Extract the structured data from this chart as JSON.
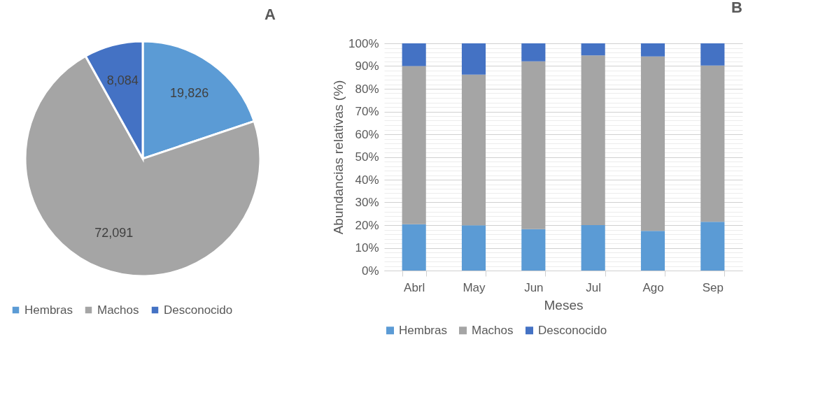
{
  "chart_data": [
    {
      "type": "pie",
      "title": "A",
      "categories": [
        "Hembras",
        "Machos",
        "Desconocido"
      ],
      "values": [
        19826,
        72091,
        8084
      ],
      "colors": [
        "#5b9bd5",
        "#a5a5a5",
        "#4472c4"
      ],
      "value_labels": [
        "19,826",
        "72,091",
        "8,084"
      ],
      "legend": "bottom"
    },
    {
      "type": "bar",
      "title": "B",
      "xlabel": "Meses",
      "ylabel": "Abundancias relativas (%)",
      "categories": [
        "Abrl",
        "May",
        "Jun",
        "Jul",
        "Ago",
        "Sep"
      ],
      "stacked": true,
      "series": [
        {
          "name": "Hembras",
          "color": "#5b9bd5",
          "values": [
            20.4,
            19.9,
            18.2,
            20.0,
            17.5,
            21.5
          ]
        },
        {
          "name": "Machos",
          "color": "#a5a5a5",
          "values": [
            69.6,
            66.3,
            73.9,
            74.7,
            76.7,
            68.7
          ]
        },
        {
          "name": "Desconocido",
          "color": "#4472c4",
          "values": [
            10.0,
            13.8,
            7.9,
            5.3,
            5.8,
            9.8
          ]
        }
      ],
      "ylim": [
        0,
        100
      ],
      "yticks": [
        {
          "value": 0,
          "label": "0%"
        },
        {
          "value": 2,
          "label": null
        },
        {
          "value": 4,
          "label": null
        },
        {
          "value": 6,
          "label": null
        },
        {
          "value": 8,
          "label": null
        },
        {
          "value": 10,
          "label": "10%"
        },
        {
          "value": 12,
          "label": null
        },
        {
          "value": 14,
          "label": null
        },
        {
          "value": 16,
          "label": null
        },
        {
          "value": 18,
          "label": null
        },
        {
          "value": 20,
          "label": "20%"
        },
        {
          "value": 22,
          "label": null
        },
        {
          "value": 24,
          "label": null
        },
        {
          "value": 26,
          "label": null
        },
        {
          "value": 28,
          "label": null
        },
        {
          "value": 30,
          "label": "30%"
        },
        {
          "value": 32,
          "label": null
        },
        {
          "value": 34,
          "label": null
        },
        {
          "value": 36,
          "label": null
        },
        {
          "value": 38,
          "label": null
        },
        {
          "value": 40,
          "label": "40%"
        },
        {
          "value": 42,
          "label": null
        },
        {
          "value": 44,
          "label": null
        },
        {
          "value": 46,
          "label": null
        },
        {
          "value": 48,
          "label": null
        },
        {
          "value": 50,
          "label": "50%"
        },
        {
          "value": 52,
          "label": null
        },
        {
          "value": 54,
          "label": null
        },
        {
          "value": 56,
          "label": null
        },
        {
          "value": 58,
          "label": null
        },
        {
          "value": 60,
          "label": "60%"
        },
        {
          "value": 62,
          "label": null
        },
        {
          "value": 64,
          "label": null
        },
        {
          "value": 66,
          "label": null
        },
        {
          "value": 68,
          "label": null
        },
        {
          "value": 70,
          "label": "70%"
        },
        {
          "value": 72,
          "label": null
        },
        {
          "value": 74,
          "label": null
        },
        {
          "value": 76,
          "label": null
        },
        {
          "value": 78,
          "label": null
        },
        {
          "value": 80,
          "label": "80%"
        },
        {
          "value": 82,
          "label": null
        },
        {
          "value": 84,
          "label": null
        },
        {
          "value": 86,
          "label": null
        },
        {
          "value": 88,
          "label": null
        },
        {
          "value": 90,
          "label": "90%"
        },
        {
          "value": 92,
          "label": null
        },
        {
          "value": 94,
          "label": null
        },
        {
          "value": 96,
          "label": null
        },
        {
          "value": 98,
          "label": null
        },
        {
          "value": 100,
          "label": "100%"
        }
      ],
      "grid": "y",
      "legend": "bottom"
    }
  ]
}
